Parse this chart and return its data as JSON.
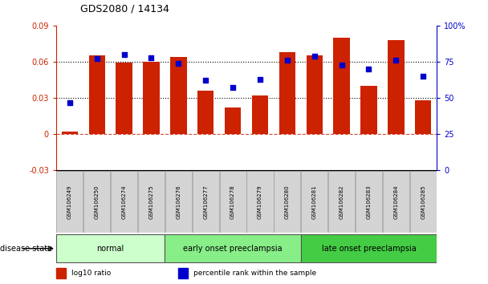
{
  "title": "GDS2080 / 14134",
  "samples": [
    "GSM106249",
    "GSM106250",
    "GSM106274",
    "GSM106275",
    "GSM106276",
    "GSM106277",
    "GSM106278",
    "GSM106279",
    "GSM106280",
    "GSM106281",
    "GSM106282",
    "GSM106283",
    "GSM106284",
    "GSM106285"
  ],
  "log10_ratio": [
    0.002,
    0.065,
    0.059,
    0.06,
    0.064,
    0.036,
    0.022,
    0.032,
    0.068,
    0.065,
    0.08,
    0.04,
    0.078,
    0.028
  ],
  "percentile_rank": [
    47,
    77,
    80,
    78,
    74,
    62,
    57,
    63,
    76,
    79,
    73,
    70,
    76,
    65
  ],
  "bar_color": "#cc2200",
  "dot_color": "#0000cc",
  "ylim_left": [
    -0.03,
    0.09
  ],
  "ylim_right": [
    0,
    100
  ],
  "yticks_left": [
    -0.03,
    0,
    0.03,
    0.06,
    0.09
  ],
  "yticks_right": [
    0,
    25,
    50,
    75,
    100
  ],
  "ytick_labels_left": [
    "-0.03",
    "0",
    "0.03",
    "0.06",
    "0.09"
  ],
  "ytick_labels_right": [
    "0",
    "25",
    "50",
    "75",
    "100%"
  ],
  "hlines": [
    0.03,
    0.06
  ],
  "groups": [
    {
      "label": "normal",
      "start": 0,
      "end": 4,
      "color": "#ccffcc"
    },
    {
      "label": "early onset preeclampsia",
      "start": 4,
      "end": 9,
      "color": "#88ee88"
    },
    {
      "label": "late onset preeclampsia",
      "start": 9,
      "end": 14,
      "color": "#44cc44"
    }
  ],
  "legend_items": [
    {
      "label": "log10 ratio",
      "color": "#cc2200"
    },
    {
      "label": "percentile rank within the sample",
      "color": "#0000cc"
    }
  ],
  "disease_state_label": "disease state",
  "background_color": "#ffffff"
}
